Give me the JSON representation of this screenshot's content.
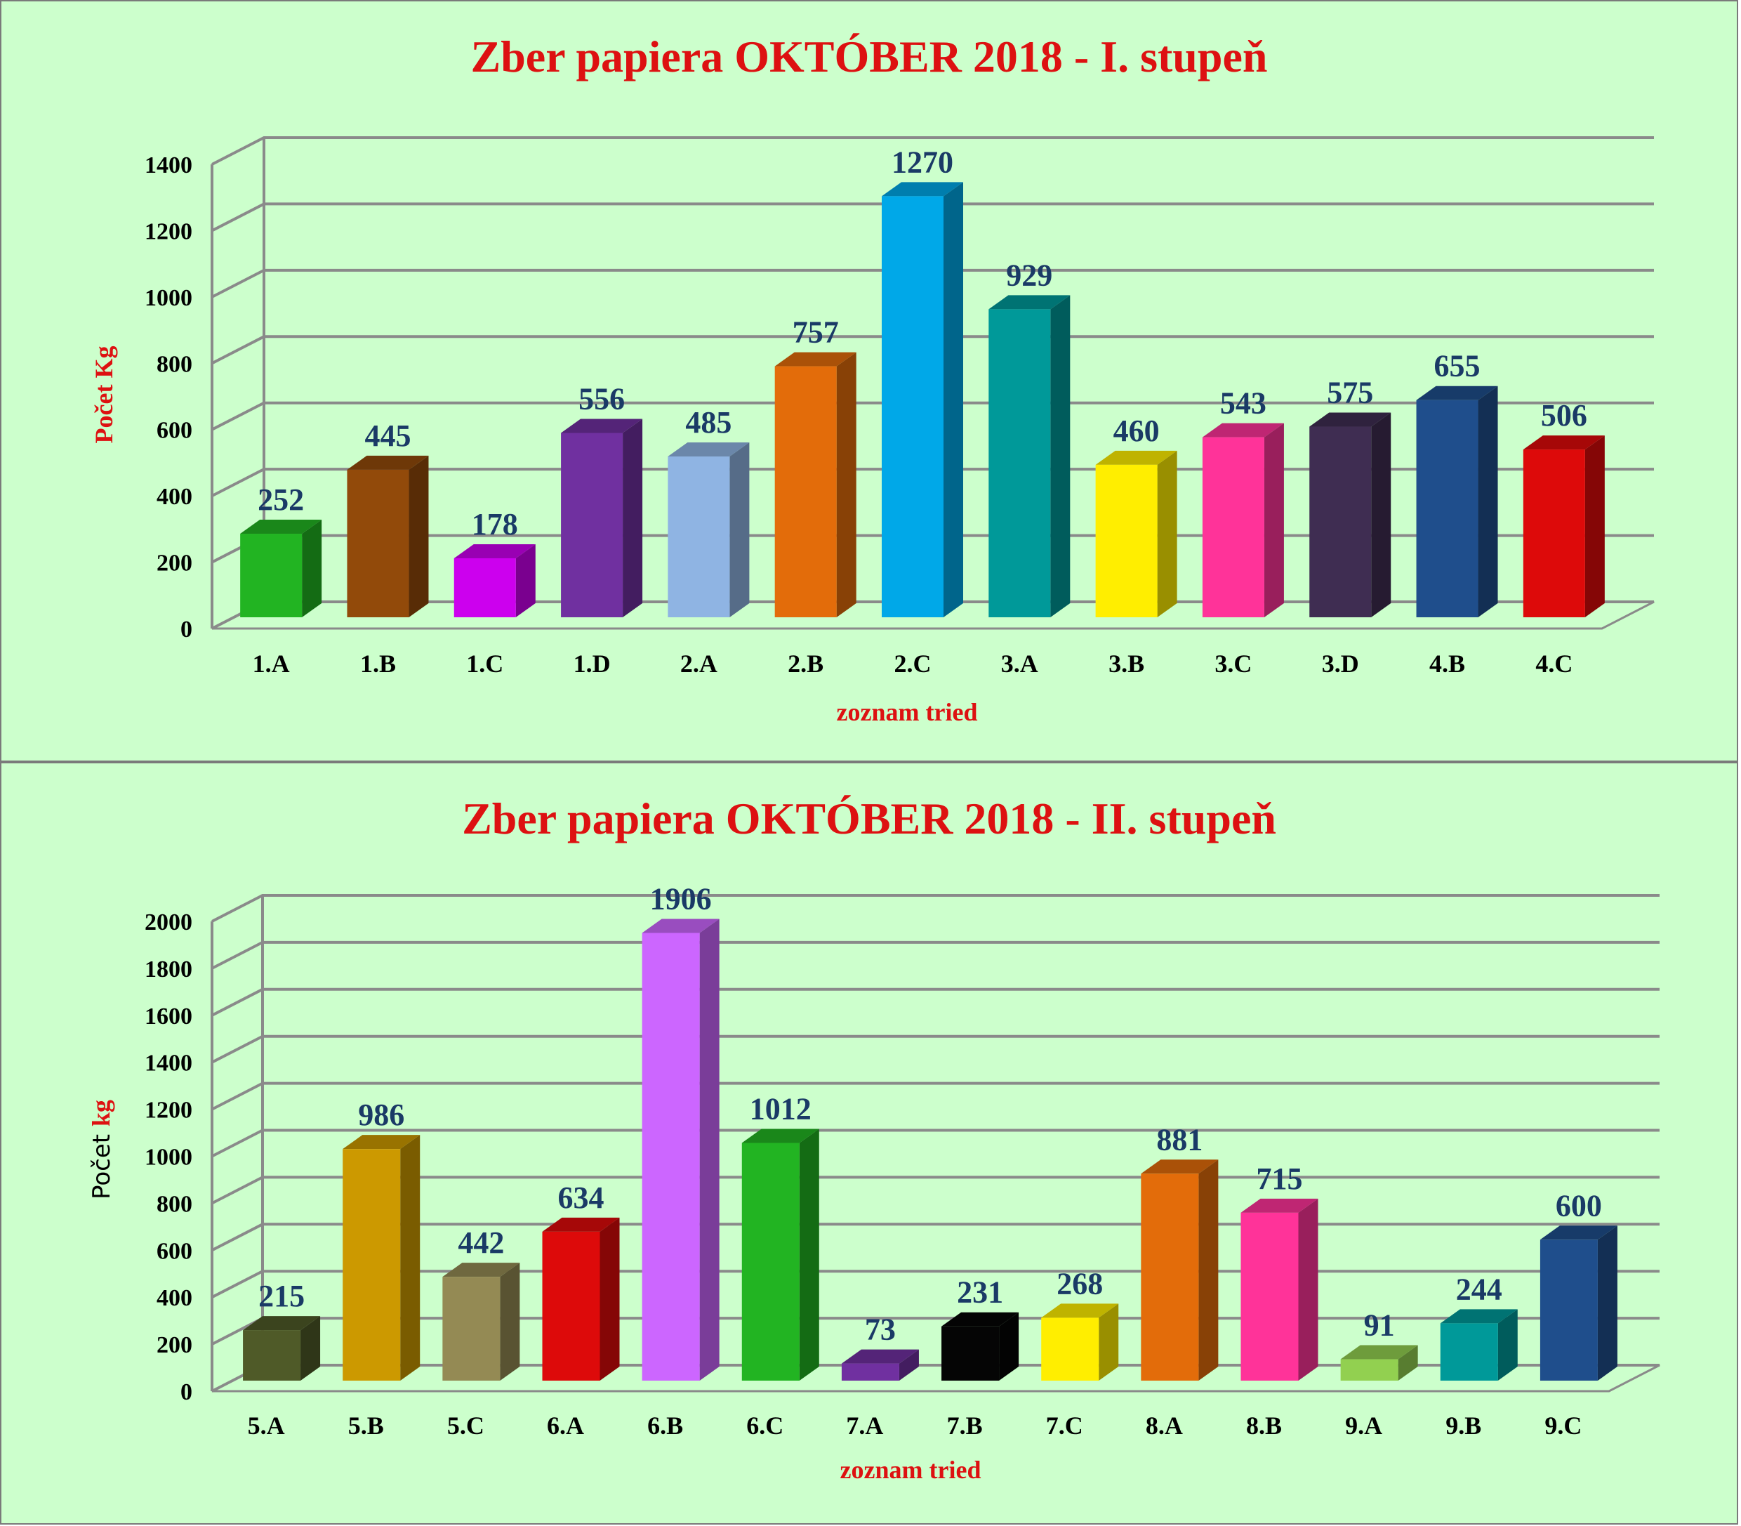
{
  "chart_data": [
    {
      "type": "bar",
      "title": "Zber papiera OKTÓBER 2018  - I. stupeň",
      "xlabel": "zoznam tried",
      "ylabel": "Počet Kg",
      "ylim": [
        0,
        1400
      ],
      "yticks": [
        "0",
        "200",
        "400",
        "600",
        "800",
        "1000",
        "1200",
        "1400"
      ],
      "grid": true,
      "categories": [
        "1.A",
        "1.B",
        "1.C",
        "1.D",
        "2.A",
        "2.B",
        "2.C",
        "3.A",
        "3.B",
        "3.C",
        "3.D",
        "4.B",
        "4.C"
      ],
      "values": [
        252,
        445,
        178,
        556,
        485,
        757,
        1270,
        929,
        460,
        543,
        575,
        655,
        506
      ],
      "colors": [
        "#22b422",
        "#924a0a",
        "#cc00ee",
        "#7030a0",
        "#8fb4e3",
        "#e36c0a",
        "#00a8e8",
        "#009999",
        "#ffee00",
        "#ff3399",
        "#3f2d52",
        "#1f4e8c",
        "#dd0a0a"
      ]
    },
    {
      "type": "bar",
      "title": "Zber papiera OKTÓBER 2018  - II. stupeň",
      "xlabel": "zoznam tried",
      "ylabel_prefix": "Počet ",
      "ylabel_suffix": "kg",
      "ylim": [
        0,
        2000
      ],
      "yticks": [
        "0",
        "200",
        "400",
        "600",
        "800",
        "1000",
        "1200",
        "1400",
        "1600",
        "1800",
        "2000"
      ],
      "grid": true,
      "categories": [
        "5.A",
        "5.B",
        "5.C",
        "6.A",
        "6.B",
        "6.C",
        "7.A",
        "7.B",
        "7.C",
        "8.A",
        "8.B",
        "9.A",
        "9.B",
        "9.C"
      ],
      "values": [
        215,
        986,
        442,
        634,
        1906,
        1012,
        73,
        231,
        268,
        881,
        715,
        91,
        244,
        600
      ],
      "colors": [
        "#4f5a28",
        "#cc9900",
        "#948a54",
        "#dd0a0a",
        "#cc66ff",
        "#22b422",
        "#7030a0",
        "#050505",
        "#ffee00",
        "#e36c0a",
        "#ff3399",
        "#92d050",
        "#009999",
        "#1f4e8c"
      ]
    }
  ]
}
